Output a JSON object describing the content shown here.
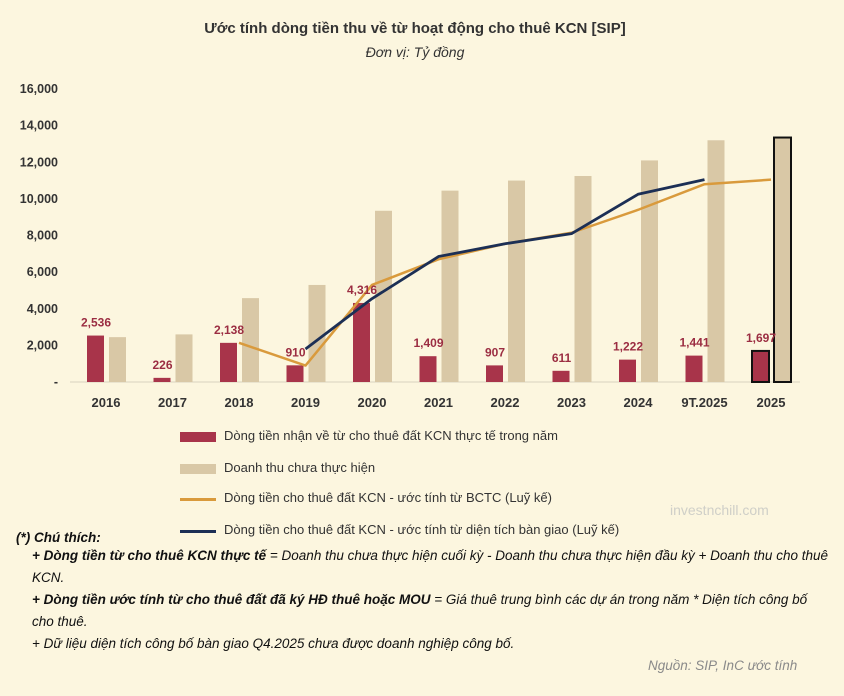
{
  "title": "Ước tính dòng tiền thu về từ hoạt động cho thuê KCN [SIP]",
  "subtitle": "Đơn vị: Tỷ đồng",
  "chart_data": {
    "type": "bar",
    "categories": [
      "2016",
      "2017",
      "2018",
      "2019",
      "2020",
      "2021",
      "2022",
      "2023",
      "2024",
      "9T.2025",
      "2025"
    ],
    "y_ticks": [
      "16,000",
      "14,000",
      "12,000",
      "10,000",
      "8,000",
      "6,000",
      "4,000",
      "2,000",
      "-"
    ],
    "ylim": [
      0,
      16000
    ],
    "series": [
      {
        "name": "Dòng tiền nhận về từ cho thuê đất KCN thực tế trong năm",
        "kind": "bar",
        "color": "#a8344a",
        "values": [
          2536,
          226,
          2138,
          910,
          4316,
          1409,
          907,
          611,
          1222,
          1441,
          1697
        ],
        "labels": [
          "2,536",
          "226",
          "2,138",
          "910",
          "4,316",
          "1,409",
          "907",
          "611",
          "1,222",
          "1,441",
          "1,697"
        ]
      },
      {
        "name": "Doanh thu chưa thực hiện",
        "kind": "bar",
        "color": "#d9c8a6",
        "values": [
          2450,
          2600,
          4580,
          5300,
          9350,
          10450,
          11000,
          11250,
          12100,
          13200,
          13350
        ]
      },
      {
        "name": "Dòng tiền cho thuê đất KCN - ước tính từ BCTC (Luỹ kế)",
        "kind": "line",
        "color": "#d99a3c",
        "values": [
          null,
          null,
          2138,
          900,
          5300,
          6700,
          7550,
          8150,
          9400,
          10800,
          11050
        ]
      },
      {
        "name": "Dòng tiền cho thuê đất KCN - ước tính từ diện tích bàn giao (Luỹ kế)",
        "kind": "line",
        "color": "#1c2f55",
        "values": [
          null,
          null,
          null,
          1800,
          4550,
          6850,
          7550,
          8100,
          10250,
          11050,
          null
        ]
      }
    ],
    "highlight_category": "2025",
    "grid": "none"
  },
  "watermark": "investnchill.com",
  "notes": {
    "heading": "(*) Chú thích:",
    "items": [
      {
        "bold": "+ Dòng tiền từ cho thuê KCN thực tế",
        "rest": " = Doanh thu chưa thực hiện cuối kỳ - Doanh thu chưa thực hiện đầu kỳ + Doanh thu cho thuê KCN."
      },
      {
        "bold": "+ Dòng tiền ước tính từ cho thuê đất đã ký HĐ thuê hoặc MOU",
        "rest": " = Giá thuê trung bình các dự án trong năm * Diện tích công bố cho thuê."
      },
      {
        "bold": "",
        "rest": "+ Dữ liệu diện tích công bố bàn giao Q4.2025 chưa được doanh nghiệp công bố."
      }
    ]
  },
  "source": "Nguồn: SIP, InC ước tính"
}
